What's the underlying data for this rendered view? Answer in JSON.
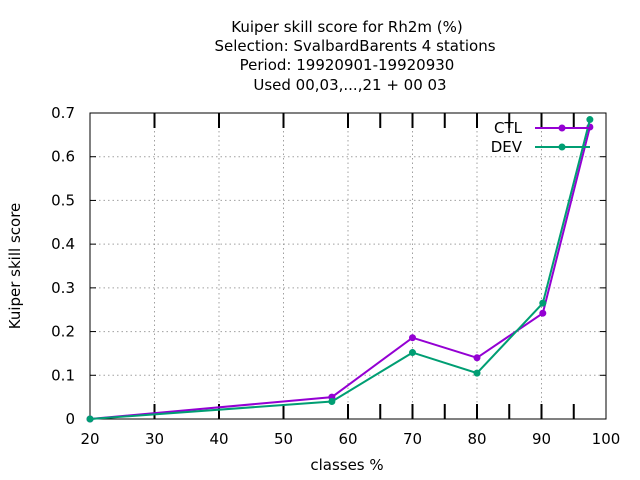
{
  "chart_data": {
    "type": "line",
    "title": [
      "Kuiper skill score  for Rh2m (%)",
      "Selection: SvalbardBarents       4 stations",
      "Period: 19920901-19920930",
      "Used  00,03,...,21  + 00 03"
    ],
    "xlabel": "classes %",
    "ylabel": "Kuiper skill score",
    "xlim": [
      20,
      100
    ],
    "ylim": [
      0,
      0.7
    ],
    "xticks": [
      20,
      30,
      40,
      50,
      60,
      70,
      80,
      90,
      100
    ],
    "xtick_labels": [
      "20",
      "30",
      "40",
      "50",
      "60",
      "70",
      "80",
      "90",
      "100"
    ],
    "yticks": [
      0,
      0.1,
      0.2,
      0.3,
      0.4,
      0.5,
      0.6,
      0.7
    ],
    "ytick_labels": [
      "0",
      "0.1",
      "0.2",
      "0.3",
      "0.4",
      "0.5",
      "0.6",
      "0.7"
    ],
    "grid": true,
    "legend_position": "top-right",
    "sample_marks_x": [
      30,
      40,
      50,
      60,
      65,
      70,
      75,
      80,
      85,
      90,
      95
    ],
    "series": [
      {
        "name": "CTL",
        "color": "#9400d3",
        "x": [
          20,
          57.5,
          70,
          80,
          90.2,
          97.5
        ],
        "y": [
          0,
          0.05,
          0.186,
          0.14,
          0.242,
          0.668
        ]
      },
      {
        "name": "DEV",
        "color": "#009e73",
        "x": [
          20,
          57.5,
          70,
          80,
          90.2,
          97.5
        ],
        "y": [
          0,
          0.04,
          0.152,
          0.105,
          0.265,
          0.685
        ]
      }
    ]
  }
}
